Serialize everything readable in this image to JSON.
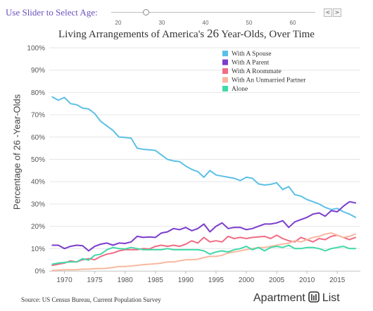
{
  "slider": {
    "label": "Use Slider to Select Age:",
    "ticks": [
      "20",
      "30",
      "40",
      "50",
      "60"
    ],
    "prev_icon": "chevron-left-icon",
    "next_icon": "chevron-right-icon",
    "prev_glyph": "<",
    "next_glyph": ">"
  },
  "title": {
    "before": "Living Arrangements of America's",
    "age": "26",
    "after": "Year-Olds, Over Time"
  },
  "ylabel": "Percentage of 26 -Year-Olds",
  "source": "Source: US Census Bureau, Current Population Survey",
  "brand": {
    "name_left": "Apartment",
    "name_right": "List",
    "logo_icon": "apartment-list-logo"
  },
  "chart_data": {
    "type": "line",
    "x": [
      1968,
      1969,
      1970,
      1971,
      1972,
      1973,
      1974,
      1975,
      1976,
      1977,
      1978,
      1979,
      1980,
      1981,
      1982,
      1983,
      1984,
      1985,
      1986,
      1987,
      1988,
      1989,
      1990,
      1991,
      1992,
      1993,
      1994,
      1995,
      1996,
      1997,
      1998,
      1999,
      2000,
      2001,
      2002,
      2003,
      2004,
      2005,
      2006,
      2007,
      2008,
      2009,
      2010,
      2011,
      2012,
      2013,
      2014,
      2015,
      2016,
      2017,
      2018
    ],
    "xticks": [
      1970,
      1975,
      1980,
      1985,
      1990,
      1995,
      2000,
      2005,
      2010,
      2015
    ],
    "xlim": [
      1967.5,
      2018.8
    ],
    "ylim": [
      0,
      100
    ],
    "yticks": [
      0,
      10,
      20,
      30,
      40,
      50,
      60,
      70,
      80,
      90,
      100
    ],
    "ytick_suffix": "%",
    "grid": true,
    "legend_position": "top-right",
    "series": [
      {
        "name": "With A Spouse",
        "color": "#5bc0e6",
        "values": [
          78,
          76.5,
          77.8,
          75,
          74.5,
          73,
          72.6,
          70.5,
          67,
          65,
          63,
          60,
          59.8,
          59.5,
          55,
          54.5,
          54.3,
          54,
          52,
          50,
          49.3,
          49,
          47,
          45.5,
          44.5,
          42,
          45,
          43,
          42.5,
          42,
          41.5,
          40.5,
          42,
          41.5,
          39,
          38.5,
          38.8,
          39.5,
          36.5,
          37.8,
          34.2,
          33.5,
          32,
          31,
          30,
          28.5,
          27.5,
          28,
          26.5,
          25.5,
          24
        ]
      },
      {
        "name": "With A Parent",
        "color": "#7b3dcc",
        "values": [
          11.5,
          11.5,
          10,
          11,
          11.5,
          11.3,
          9,
          11,
          12,
          12.5,
          11.5,
          12.5,
          12.3,
          13,
          15.5,
          15,
          15.2,
          15,
          17,
          17.5,
          19,
          18.5,
          19.5,
          18,
          19,
          21,
          17.5,
          20,
          21.5,
          19,
          19.5,
          19.5,
          18.5,
          19,
          20,
          21,
          21,
          21.5,
          22.5,
          19.5,
          22,
          23,
          24,
          25.5,
          26,
          24.5,
          27,
          26.5,
          29,
          31,
          30.5
        ]
      },
      {
        "name": "With A Roommate",
        "color": "#f06c84",
        "values": [
          2.5,
          3,
          3.5,
          4.5,
          4,
          5,
          5.5,
          5,
          6.5,
          7.5,
          8,
          9,
          9.5,
          9.5,
          9.5,
          10,
          9.8,
          11,
          11.5,
          11,
          11.5,
          11,
          12,
          13.5,
          12.5,
          15,
          13,
          13.5,
          13,
          15.5,
          14.5,
          15,
          14.5,
          15,
          15.2,
          15.5,
          14.5,
          16,
          14.5,
          13.5,
          13,
          15,
          14,
          13,
          14.5,
          14,
          15.5,
          16,
          15,
          14,
          15
        ]
      },
      {
        "name": "With An Unmarried Partner",
        "color": "#f8b8a0",
        "values": [
          0.2,
          0.3,
          0.5,
          0.5,
          0.5,
          0.8,
          0.8,
          1,
          1,
          1.2,
          1.5,
          2,
          2,
          2.2,
          2.5,
          2.8,
          3,
          3.2,
          3.5,
          4,
          4,
          4.5,
          5,
          5,
          5.2,
          6,
          6.5,
          6.5,
          7,
          8,
          8.5,
          9,
          9.5,
          10,
          10.5,
          10.5,
          11,
          11.5,
          12,
          12.5,
          13.5,
          13,
          14,
          15,
          15.5,
          16.5,
          17,
          16,
          15,
          15.5,
          16.5
        ]
      },
      {
        "name": "Alone",
        "color": "#40d9a8",
        "values": [
          3,
          3.5,
          3.8,
          4,
          4,
          5.5,
          4.8,
          7,
          7.5,
          9.5,
          10.5,
          10,
          9.8,
          10.5,
          10,
          9.5,
          9.5,
          9.5,
          9.5,
          10,
          9.5,
          9.5,
          9.5,
          9.5,
          9.5,
          9,
          7.5,
          8.5,
          9,
          8.5,
          9.5,
          10,
          11,
          9.5,
          10.5,
          9,
          10.5,
          11,
          10.5,
          11.5,
          10,
          10,
          10.5,
          10.5,
          10,
          9,
          10,
          10.5,
          11,
          10,
          10
        ]
      }
    ]
  }
}
